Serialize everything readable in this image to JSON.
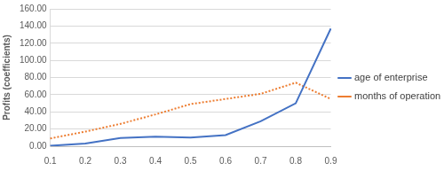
{
  "chart_data": {
    "type": "line",
    "y_label": "Profits (coefficients)",
    "categories": [
      "0.1",
      "0.2",
      "0.3",
      "0.4",
      "0.5",
      "0.6",
      "0.7",
      "0.8",
      "0.9"
    ],
    "series": [
      {
        "name": "age of enterprise",
        "color": "#4472c4",
        "line_style": "solid",
        "values": [
          0.5,
          3,
          9.5,
          11,
          10,
          13,
          29,
          50,
          137
        ]
      },
      {
        "name": "months of operation",
        "color": "#ed7d31",
        "line_style": "dotted",
        "values": [
          9,
          17,
          26,
          37,
          49,
          55,
          61,
          74,
          55
        ]
      }
    ],
    "ylim": [
      0,
      160
    ],
    "yticks": [
      {
        "value": 0,
        "label": "0.00"
      },
      {
        "value": 20,
        "label": "20.00"
      },
      {
        "value": 40,
        "label": "40.00"
      },
      {
        "value": 60,
        "label": "60.00"
      },
      {
        "value": 80,
        "label": "80.00"
      },
      {
        "value": 100,
        "label": "100.00"
      },
      {
        "value": 120,
        "label": "120.00"
      },
      {
        "value": 140,
        "label": "140.00"
      },
      {
        "value": 160,
        "label": "160.00"
      }
    ],
    "grid": true,
    "legend": "right"
  }
}
